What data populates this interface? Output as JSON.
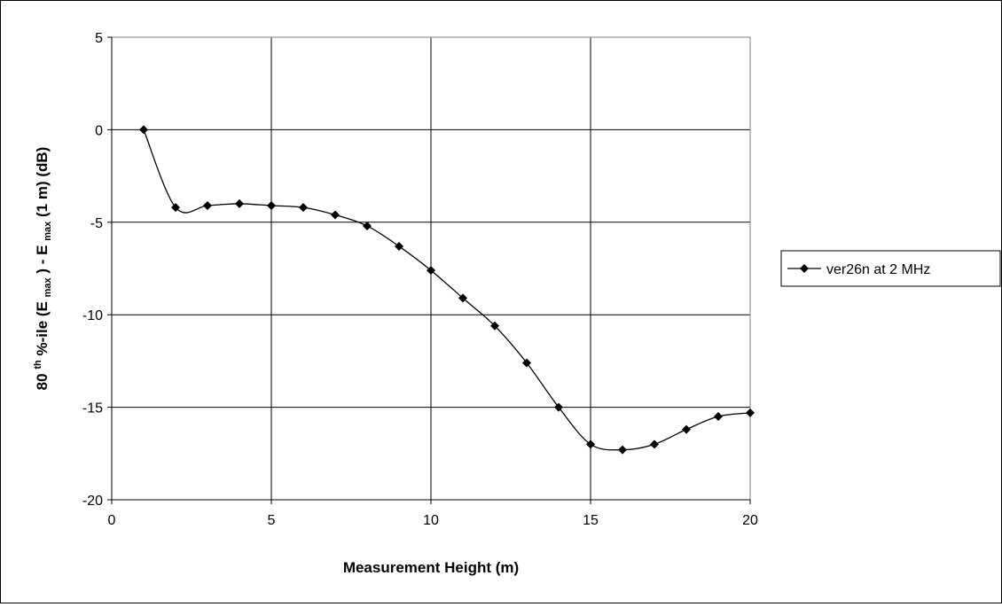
{
  "chart_data": {
    "type": "line",
    "title": "",
    "xlabel": "Measurement Height (m)",
    "ylabel": {
      "p1": "80",
      "sup": "th",
      "p2": " %-ile (E",
      "sub1": "max",
      "p3": ") - E",
      "sub2": "max",
      "p4": " (1 m) (dB)"
    },
    "xlim": [
      0,
      20
    ],
    "ylim": [
      -20,
      5
    ],
    "xticks": [
      0,
      5,
      10,
      15,
      20
    ],
    "yticks": [
      -20,
      -15,
      -10,
      -5,
      0,
      5
    ],
    "xtick_labels": [
      "0",
      "5",
      "10",
      "15",
      "20"
    ],
    "ytick_labels": [
      "-20",
      "-15",
      "-10",
      "-5",
      "0",
      "5"
    ],
    "grid": true,
    "legend_position": "right",
    "smoothed": true,
    "marker": "diamond",
    "series": [
      {
        "name": "ver26n at 2 MHz",
        "color": "#000000",
        "x": [
          1,
          2,
          3,
          4,
          5,
          6,
          7,
          8,
          9,
          10,
          11,
          12,
          13,
          14,
          15,
          16,
          17,
          18,
          19,
          20
        ],
        "y": [
          0,
          -4.2,
          -4.1,
          -4.0,
          -4.1,
          -4.2,
          -4.6,
          -5.2,
          -6.3,
          -7.6,
          -9.1,
          -10.6,
          -12.6,
          -15.0,
          -17.0,
          -17.3,
          -17.0,
          -16.2,
          -15.5,
          -15.3
        ]
      }
    ]
  }
}
